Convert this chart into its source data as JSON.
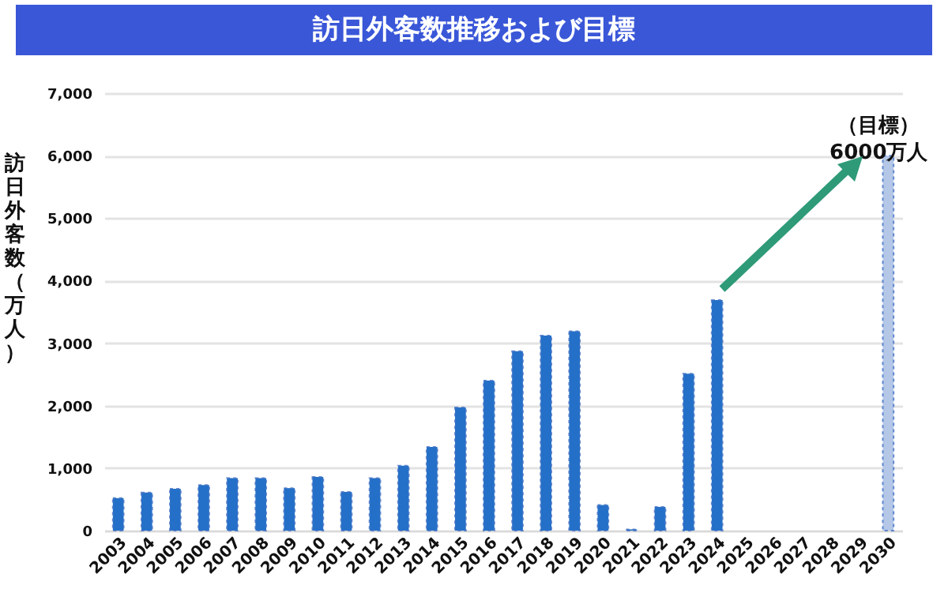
{
  "chart_data": {
    "type": "bar",
    "title": "訪日外客数推移および目標",
    "ylabel": "訪日外客数（万人）",
    "categories": [
      "2003",
      "2004",
      "2005",
      "2006",
      "2007",
      "2008",
      "2009",
      "2010",
      "2011",
      "2012",
      "2013",
      "2014",
      "2015",
      "2016",
      "2017",
      "2018",
      "2019",
      "2020",
      "2021",
      "2022",
      "2023",
      "2024",
      "2025",
      "2026",
      "2027",
      "2028",
      "2029",
      "2030"
    ],
    "values": [
      520,
      610,
      670,
      730,
      840,
      840,
      680,
      860,
      620,
      840,
      1040,
      1340,
      1970,
      2400,
      2870,
      3120,
      3190,
      410,
      20,
      380,
      2510,
      3690,
      null,
      null,
      null,
      null,
      null,
      6000
    ],
    "colors": [
      "#2470c8",
      "#2470c8",
      "#2470c8",
      "#2470c8",
      "#2470c8",
      "#2470c8",
      "#2470c8",
      "#2470c8",
      "#2470c8",
      "#2470c8",
      "#2470c8",
      "#2470c8",
      "#2470c8",
      "#2470c8",
      "#2470c8",
      "#2470c8",
      "#2470c8",
      "#2470c8",
      "#2470c8",
      "#2470c8",
      "#2470c8",
      "#2470c8",
      "#2470c8",
      "#2470c8",
      "#2470c8",
      "#2470c8",
      "#2470c8",
      "#b4c7e7"
    ],
    "ylim": [
      0,
      7000
    ],
    "yticks": [
      {
        "value": 0,
        "label": "0"
      },
      {
        "value": 1000,
        "label": "1,000"
      },
      {
        "value": 2000,
        "label": "2,000"
      },
      {
        "value": 3000,
        "label": "3,000"
      },
      {
        "value": 4000,
        "label": "4,000"
      },
      {
        "value": 5000,
        "label": "5,000"
      },
      {
        "value": 6000,
        "label": "6,000"
      },
      {
        "value": 7000,
        "label": "7,000"
      }
    ],
    "grid": "y",
    "annotations": [
      {
        "text": "（目標）\n6000万人",
        "x": "2030",
        "y": 6000
      }
    ]
  }
}
